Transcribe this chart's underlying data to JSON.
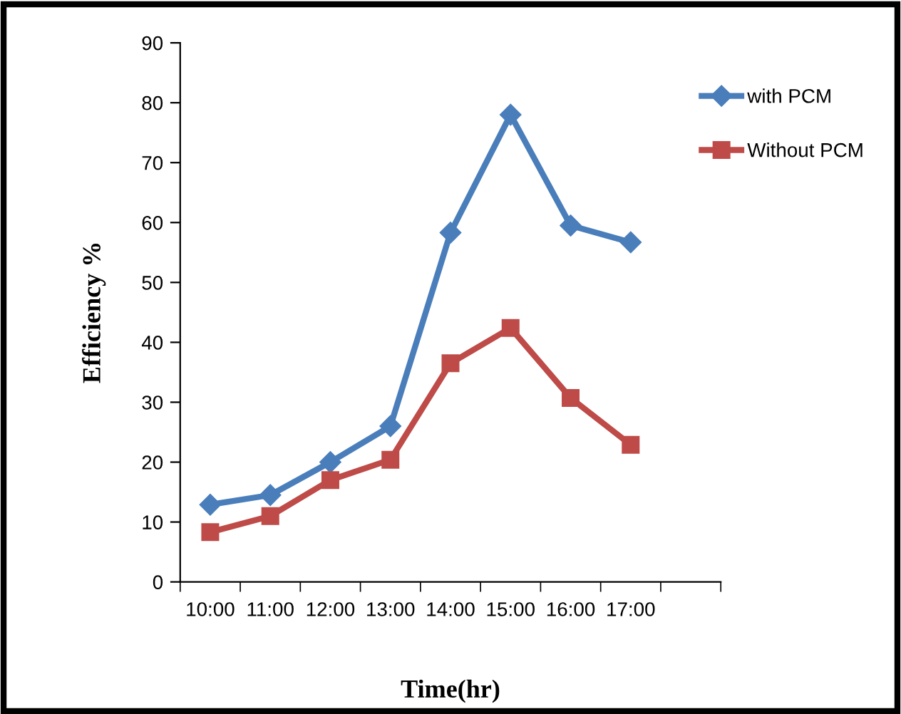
{
  "chart_data": {
    "type": "line",
    "xlabel": "Time(hr)",
    "ylabel": "Efficiency %",
    "categories": [
      "10:00",
      "11:00",
      "12:00",
      "13:00",
      "14:00",
      "15:00",
      "16:00",
      "17:00",
      null
    ],
    "series": [
      {
        "name": "with PCM",
        "color": "#4a7ebb",
        "marker": "diamond",
        "values": [
          12.9,
          14.5,
          20,
          26,
          58.3,
          78,
          59.5,
          56.7,
          null
        ]
      },
      {
        "name": "Without PCM",
        "color": "#be4b48",
        "marker": "square",
        "values": [
          8.3,
          11,
          17,
          20.4,
          36.5,
          42.4,
          30.7,
          22.9,
          null
        ]
      }
    ],
    "ylim": [
      0,
      90
    ],
    "yticks": [
      0,
      10,
      20,
      30,
      40,
      50,
      60,
      70,
      80,
      90
    ],
    "grid": false,
    "legend": "top right",
    "line_style": "solid"
  }
}
